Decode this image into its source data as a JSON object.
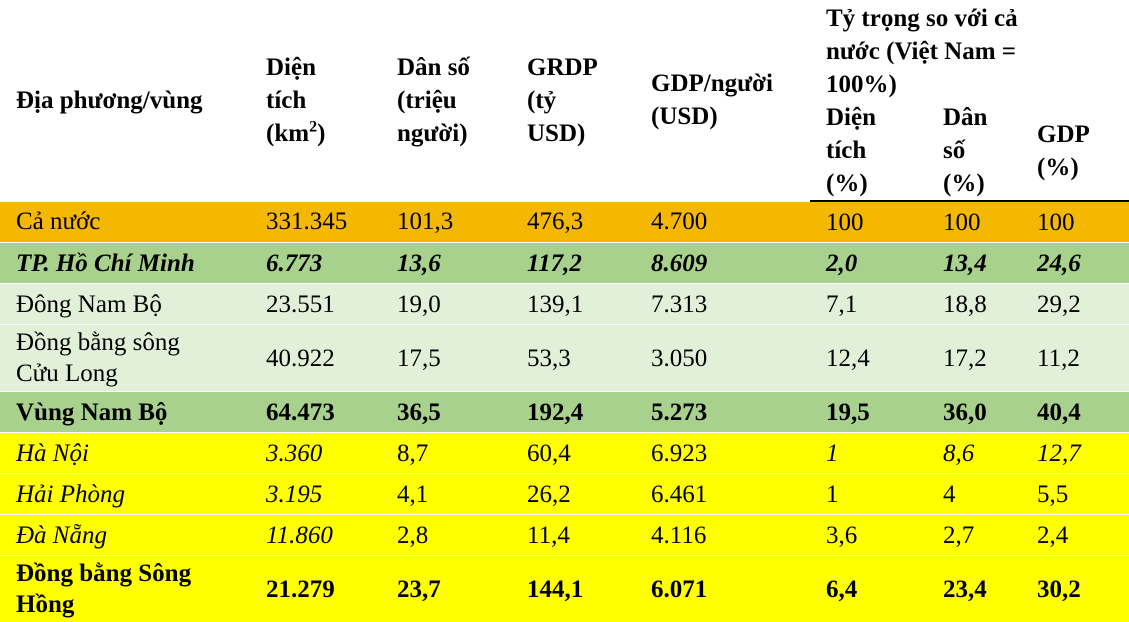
{
  "header": {
    "region": "Địa phương/vùng",
    "area": "Diện tích (km",
    "area_sup": "2",
    "area_close": ")",
    "population": "Dân số (triệu người)",
    "grdp": "GRDP (tỷ USD)",
    "gdp_per_capita": "GDP/người (USD)",
    "share_group": "Tỷ trọng so với cả nước (Việt Nam = 100%)",
    "share_area": "Diện tích (%)",
    "share_population": "Dân số (%)",
    "share_gdp": "GDP (%)"
  },
  "colors": {
    "orange": "#f5b800",
    "green_dark": "#a9d18e",
    "green_light": "#e2f0d9",
    "yellow": "#ffff00"
  },
  "rows": [
    {
      "region": "Cả nước",
      "area": "331.345",
      "population": "101,3",
      "grdp": "476,3",
      "gdp_per_capita": "4.700",
      "share_area": "100",
      "share_population": "100",
      "share_gdp": "100"
    },
    {
      "region": "TP. Hồ Chí Minh",
      "area": "6.773",
      "population": "13,6",
      "grdp": "117,2",
      "gdp_per_capita": "8.609",
      "share_area": "2,0",
      "share_population": "13,4",
      "share_gdp": "24,6"
    },
    {
      "region": "Đông Nam Bộ",
      "area": "23.551",
      "population": "19,0",
      "grdp": "139,1",
      "gdp_per_capita": "7.313",
      "share_area": "7,1",
      "share_population": "18,8",
      "share_gdp": "29,2"
    },
    {
      "region": "Đồng bằng sông Cửu Long",
      "area": "40.922",
      "population": "17,5",
      "grdp": "53,3",
      "gdp_per_capita": "3.050",
      "share_area": "12,4",
      "share_population": "17,2",
      "share_gdp": "11,2"
    },
    {
      "region": "Vùng Nam Bộ",
      "area": "64.473",
      "population": "36,5",
      "grdp": "192,4",
      "gdp_per_capita": "5.273",
      "share_area": "19,5",
      "share_population": "36,0",
      "share_gdp": "40,4"
    },
    {
      "region": "Hà Nội",
      "area": "3.360",
      "population": "8,7",
      "grdp": "60,4",
      "gdp_per_capita": "6.923",
      "share_area": "1",
      "share_population": "8,6",
      "share_gdp": "12,7"
    },
    {
      "region": "Hải Phòng",
      "area": "3.195",
      "population": "4,1",
      "grdp": "26,2",
      "gdp_per_capita": "6.461",
      "share_area": "1",
      "share_population": "4",
      "share_gdp": "5,5"
    },
    {
      "region": "Đà Nẵng",
      "area": "11.860",
      "population": "2,8",
      "grdp": "11,4",
      "gdp_per_capita": "4.116",
      "share_area": "3,6",
      "share_population": "2,7",
      "share_gdp": "2,4"
    },
    {
      "region": "Đồng bằng Sông Hồng",
      "area": "21.279",
      "population": "23,7",
      "grdp": "144,1",
      "gdp_per_capita": "6.071",
      "share_area": "6,4",
      "share_population": "23,4",
      "share_gdp": "30,2"
    }
  ]
}
